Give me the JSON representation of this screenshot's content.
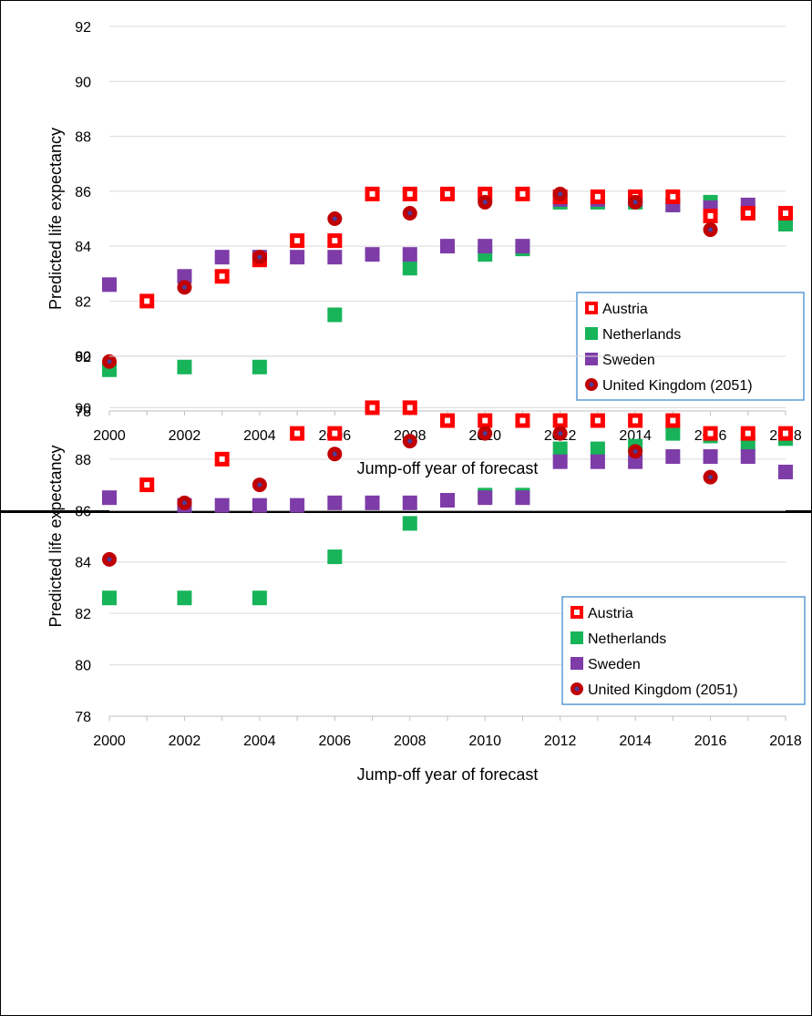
{
  "colors": {
    "austria": "#ff0000",
    "netherlands": "#17b45a",
    "sweden": "#7d3ca8",
    "uk_fill": "#c00000",
    "uk_center": "#4a3d9a",
    "legend_border": "#5b9bd5",
    "grid": "#d9d9d9"
  },
  "chart_data": [
    {
      "type": "scatter",
      "xlabel": "Jump-off year of forecast",
      "ylabel": "Predicted life expectancy",
      "xlim": [
        2000,
        2018
      ],
      "ylim": [
        78,
        92
      ],
      "xticks": [
        "2000",
        "2002",
        "2004",
        "2006",
        "2008",
        "2010",
        "2012",
        "2014",
        "2016",
        "2018"
      ],
      "yticks": [
        "78",
        "80",
        "82",
        "84",
        "86",
        "88",
        "90",
        "92"
      ],
      "grid": "horizontal",
      "legend_position": "bottom-right",
      "series": [
        {
          "name": "Austria",
          "marker": "hollow-square",
          "x": [
            2001,
            2003,
            2004,
            2005,
            2006,
            2007,
            2008,
            2009,
            2010,
            2011,
            2012,
            2013,
            2014,
            2015,
            2016,
            2017,
            2018
          ],
          "y": [
            82.0,
            82.9,
            83.5,
            84.2,
            84.2,
            85.9,
            85.9,
            85.9,
            85.9,
            85.9,
            85.8,
            85.8,
            85.8,
            85.8,
            85.1,
            85.2,
            85.2
          ]
        },
        {
          "name": "Netherlands",
          "marker": "square",
          "x": [
            2000,
            2002,
            2004,
            2006,
            2008,
            2010,
            2011,
            2012,
            2013,
            2014,
            2015,
            2016,
            2017,
            2018
          ],
          "y": [
            79.5,
            79.6,
            79.6,
            81.5,
            83.2,
            83.7,
            83.9,
            85.6,
            85.6,
            85.6,
            85.5,
            85.6,
            85.2,
            84.8
          ]
        },
        {
          "name": "Sweden",
          "marker": "square",
          "x": [
            2000,
            2002,
            2003,
            2004,
            2005,
            2006,
            2007,
            2008,
            2009,
            2010,
            2011,
            2012,
            2013,
            2014,
            2015,
            2016,
            2017,
            2018
          ],
          "y": [
            82.6,
            82.9,
            83.6,
            83.6,
            83.6,
            83.6,
            83.7,
            83.7,
            84.0,
            84.0,
            84.0,
            85.7,
            85.7,
            85.7,
            85.5,
            85.4,
            85.5,
            85.2
          ]
        },
        {
          "name": "United Kingdom (2051)",
          "marker": "circle",
          "x": [
            2000,
            2002,
            2004,
            2006,
            2008,
            2010,
            2012,
            2014,
            2016
          ],
          "y": [
            79.8,
            82.5,
            83.6,
            85.0,
            85.2,
            85.6,
            85.9,
            85.6,
            84.6
          ]
        }
      ]
    },
    {
      "type": "scatter",
      "xlabel": "Jump-off year of forecast",
      "ylabel": "Predicted life expectancy",
      "xlim": [
        2000,
        2018
      ],
      "ylim": [
        78,
        92
      ],
      "xticks": [
        "2000",
        "2002",
        "2004",
        "2006",
        "2008",
        "2010",
        "2012",
        "2014",
        "2016",
        "2018"
      ],
      "yticks": [
        "78",
        "80",
        "82",
        "84",
        "86",
        "88",
        "90",
        "92"
      ],
      "grid": "horizontal",
      "legend_position": "bottom-right",
      "series": [
        {
          "name": "Austria",
          "marker": "hollow-square",
          "x": [
            2001,
            2003,
            2005,
            2006,
            2007,
            2008,
            2009,
            2010,
            2011,
            2012,
            2013,
            2014,
            2015,
            2016,
            2017,
            2018
          ],
          "y": [
            87.0,
            88.0,
            89.0,
            89.0,
            90.0,
            90.0,
            89.5,
            89.5,
            89.5,
            89.5,
            89.5,
            89.5,
            89.5,
            89.0,
            89.0,
            89.0
          ]
        },
        {
          "name": "Netherlands",
          "marker": "square",
          "x": [
            2000,
            2002,
            2004,
            2006,
            2008,
            2010,
            2011,
            2012,
            2013,
            2014,
            2015,
            2016,
            2017,
            2018
          ],
          "y": [
            82.6,
            82.6,
            82.6,
            84.2,
            85.5,
            86.6,
            86.6,
            88.4,
            88.4,
            88.5,
            89.0,
            88.9,
            88.6,
            88.8
          ]
        },
        {
          "name": "Sweden",
          "marker": "square",
          "x": [
            2000,
            2002,
            2003,
            2004,
            2005,
            2006,
            2007,
            2008,
            2009,
            2010,
            2011,
            2012,
            2013,
            2014,
            2015,
            2016,
            2017,
            2018
          ],
          "y": [
            86.5,
            86.2,
            86.2,
            86.2,
            86.2,
            86.3,
            86.3,
            86.3,
            86.4,
            86.5,
            86.5,
            87.9,
            87.9,
            87.9,
            88.1,
            88.1,
            88.1,
            87.5
          ]
        },
        {
          "name": "United Kingdom (2051)",
          "marker": "circle",
          "x": [
            2000,
            2002,
            2004,
            2006,
            2008,
            2010,
            2012,
            2014,
            2016
          ],
          "y": [
            84.1,
            86.3,
            87.0,
            88.2,
            88.7,
            89.0,
            89.0,
            88.3,
            87.3
          ]
        }
      ]
    }
  ]
}
